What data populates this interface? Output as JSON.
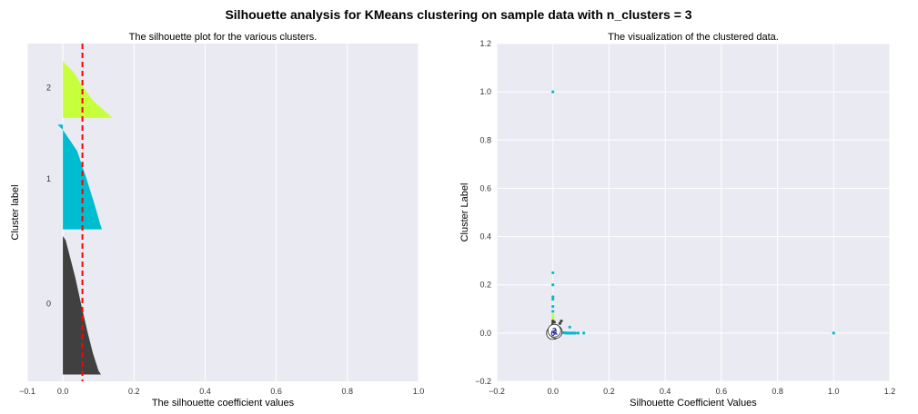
{
  "suptitle": "Silhouette analysis for KMeans clustering on sample data with n_clusters = 3",
  "colors": {
    "plot_bg": "#EAEAF2",
    "grid": "#FFFFFF",
    "average_line": "#FF0000",
    "cluster_0": "#404040",
    "cluster_1": "#00BCD0",
    "cluster_2": "#C8FF3C",
    "center_marker_face": "#FFFFFF",
    "center_label": "#1A1A8C"
  },
  "chart_data": [
    {
      "type": "area",
      "title": "The silhouette plot for the various clusters.",
      "xlabel": "The silhouette coefficient values",
      "ylabel": "Cluster label",
      "xlim": [
        -0.1,
        1.0
      ],
      "xticks": [
        "−0.1",
        "0.0",
        "0.2",
        "0.4",
        "0.6",
        "0.8",
        "1.0"
      ],
      "ylim": [
        0,
        100
      ],
      "grid": true,
      "average_silhouette_score": 0.055,
      "clusters": [
        {
          "label": "0",
          "y_range": [
            2,
            43
          ],
          "label_y": 23,
          "profile_y": [
            0,
            0.03,
            0.15,
            0.3,
            0.5,
            0.7,
            0.85,
            0.97,
            1.0
          ],
          "profile_x": [
            0.107,
            0.1,
            0.085,
            0.07,
            0.052,
            0.035,
            0.02,
            0.008,
            0.0
          ]
        },
        {
          "label": "1",
          "y_range": [
            45,
            76
          ],
          "label_y": 60,
          "profile_y": [
            0,
            0.05,
            0.25,
            0.5,
            0.75,
            0.95,
            1.0
          ],
          "profile_x": [
            0.11,
            0.105,
            0.088,
            0.065,
            0.04,
            0.0,
            -0.015
          ]
        },
        {
          "label": "2",
          "y_range": [
            78,
            95
          ],
          "label_y": 87,
          "profile_y": [
            0,
            0.08,
            0.3,
            0.55,
            0.8,
            0.95,
            1.0
          ],
          "profile_x": [
            0.14,
            0.125,
            0.085,
            0.055,
            0.03,
            0.005,
            0.0
          ]
        }
      ]
    },
    {
      "type": "scatter",
      "title": "The visualization of the clustered data.",
      "xlabel": "Silhouette Coefficient Values",
      "ylabel": "Cluster Label",
      "xlim": [
        -0.2,
        1.2
      ],
      "ylim": [
        -0.2,
        1.2
      ],
      "xticks": [
        "−0.2",
        "0.0",
        "0.2",
        "0.4",
        "0.6",
        "0.8",
        "1.0",
        "1.2"
      ],
      "yticks": [
        "−0.2",
        "0.0",
        "0.2",
        "0.4",
        "0.6",
        "0.8",
        "1.0",
        "1.2"
      ],
      "grid": true,
      "points": [
        {
          "x": 0.0,
          "y": 1.0,
          "c": 1
        },
        {
          "x": 1.0,
          "y": 0.0,
          "c": 1
        },
        {
          "x": 0.0,
          "y": 0.25,
          "c": 1
        },
        {
          "x": 0.0,
          "y": 0.2,
          "c": 1
        },
        {
          "x": 0.0,
          "y": 0.15,
          "c": 1
        },
        {
          "x": 0.0,
          "y": 0.14,
          "c": 1
        },
        {
          "x": 0.0,
          "y": 0.11,
          "c": 1
        },
        {
          "x": 0.0,
          "y": 0.09,
          "c": 1
        },
        {
          "x": 0.0,
          "y": 0.075,
          "c": 2
        },
        {
          "x": 0.0,
          "y": 0.065,
          "c": 2
        },
        {
          "x": 0.0,
          "y": 0.055,
          "c": 2
        },
        {
          "x": 0.0,
          "y": 0.05,
          "c": 0
        },
        {
          "x": 0.0,
          "y": 0.04,
          "c": 0
        },
        {
          "x": 0.0,
          "y": 0.03,
          "c": 0
        },
        {
          "x": 0.005,
          "y": 0.045,
          "c": 0
        },
        {
          "x": 0.005,
          "y": 0.035,
          "c": 2
        },
        {
          "x": 0.01,
          "y": 0.02,
          "c": 1
        },
        {
          "x": 0.015,
          "y": 0.01,
          "c": 1
        },
        {
          "x": 0.02,
          "y": 0.005,
          "c": 1
        },
        {
          "x": 0.025,
          "y": 0.004,
          "c": 1
        },
        {
          "x": 0.03,
          "y": 0.003,
          "c": 1
        },
        {
          "x": 0.035,
          "y": 0.002,
          "c": 1
        },
        {
          "x": 0.04,
          "y": 0.001,
          "c": 1
        },
        {
          "x": 0.045,
          "y": 0.001,
          "c": 1
        },
        {
          "x": 0.05,
          "y": 0.0,
          "c": 1
        },
        {
          "x": 0.055,
          "y": 0.0,
          "c": 1
        },
        {
          "x": 0.06,
          "y": 0.0,
          "c": 1
        },
        {
          "x": 0.065,
          "y": 0.0,
          "c": 1
        },
        {
          "x": 0.07,
          "y": 0.0,
          "c": 1
        },
        {
          "x": 0.075,
          "y": 0.0,
          "c": 1
        },
        {
          "x": 0.08,
          "y": 0.0,
          "c": 1
        },
        {
          "x": 0.09,
          "y": 0.0,
          "c": 1
        },
        {
          "x": 0.11,
          "y": 0.0,
          "c": 1
        },
        {
          "x": 0.06,
          "y": 0.025,
          "c": 1
        },
        {
          "x": 0.03,
          "y": 0.05,
          "c": 0
        },
        {
          "x": 0.025,
          "y": 0.04,
          "c": 0
        }
      ],
      "centers": [
        {
          "label": "0",
          "x": 0.0,
          "y": 0.0
        },
        {
          "label": "1",
          "x": 0.01,
          "y": 0.005
        },
        {
          "label": "2",
          "x": 0.005,
          "y": 0.01
        }
      ]
    }
  ]
}
